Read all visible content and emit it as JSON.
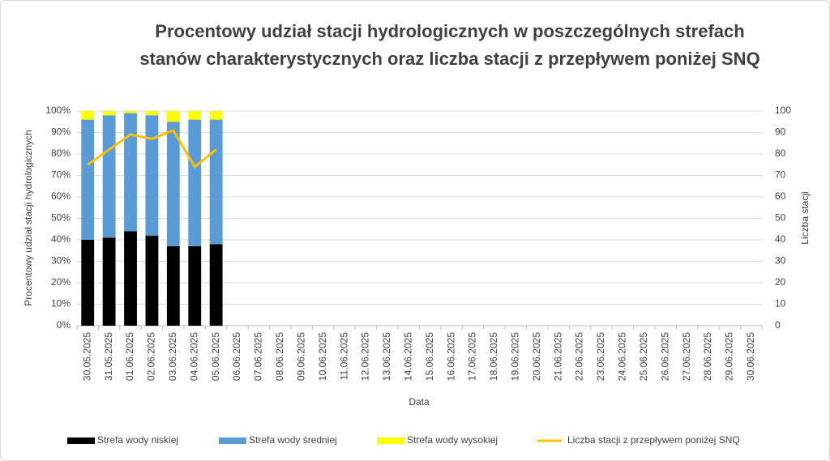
{
  "chart_data": {
    "type": "bar",
    "stacked": true,
    "title": "Procentowy udział stacji hydrologicznych w poszczególnych strefach stanów charakterystycznych oraz liczba stacji z przepływem poniżej SNQ",
    "xlabel": "Data",
    "ylabel": "Procentowy udział stacji hydrologicznych",
    "y2label": "Liczba stacji",
    "categories": [
      "30.05.2025",
      "31.05.2025",
      "01.06.2025",
      "02.06.2025",
      "03.06.2025",
      "04.06.2025",
      "05.06.2025",
      "06.06.2025",
      "07.06.2025",
      "08.06.2025",
      "09.06.2025",
      "10.06.2025",
      "11.06.2025",
      "12.06.2025",
      "13.06.2025",
      "14.06.2025",
      "15.06.2025",
      "16.06.2025",
      "17.06.2025",
      "18.06.2025",
      "19.06.2025",
      "20.06.2025",
      "21.06.2025",
      "22.06.2025",
      "23.06.2025",
      "24.06.2025",
      "25.06.2025",
      "26.06.2025",
      "27.06.2025",
      "28.06.2025",
      "29.06.2025",
      "30.06.2025"
    ],
    "series": [
      {
        "name": "Strefa wody niskiej",
        "color": "#000000",
        "values": [
          40,
          41,
          44,
          42,
          37,
          37,
          38,
          null,
          null,
          null,
          null,
          null,
          null,
          null,
          null,
          null,
          null,
          null,
          null,
          null,
          null,
          null,
          null,
          null,
          null,
          null,
          null,
          null,
          null,
          null,
          null,
          null
        ]
      },
      {
        "name": "Strefa wody średniej",
        "color": "#5b9bd5",
        "values": [
          56,
          57,
          55,
          56,
          58,
          59,
          58,
          null,
          null,
          null,
          null,
          null,
          null,
          null,
          null,
          null,
          null,
          null,
          null,
          null,
          null,
          null,
          null,
          null,
          null,
          null,
          null,
          null,
          null,
          null,
          null,
          null
        ]
      },
      {
        "name": "Strefa wody wysokiej",
        "color": "#ffff00",
        "values": [
          4,
          2,
          1,
          2,
          5,
          4,
          4,
          null,
          null,
          null,
          null,
          null,
          null,
          null,
          null,
          null,
          null,
          null,
          null,
          null,
          null,
          null,
          null,
          null,
          null,
          null,
          null,
          null,
          null,
          null,
          null,
          null
        ]
      },
      {
        "name": "Liczba stacji z przepływem poniżej SNQ",
        "color": "#ffc000",
        "type": "line",
        "axis": "y2",
        "values": [
          75,
          82,
          89,
          87,
          91,
          74,
          82,
          null,
          null,
          null,
          null,
          null,
          null,
          null,
          null,
          null,
          null,
          null,
          null,
          null,
          null,
          null,
          null,
          null,
          null,
          null,
          null,
          null,
          null,
          null,
          null,
          null
        ]
      }
    ],
    "ylim": [
      0,
      100
    ],
    "yticks": [
      {
        "value": 0,
        "label": "0%"
      },
      {
        "value": 10,
        "label": "10%"
      },
      {
        "value": 20,
        "label": "20%"
      },
      {
        "value": 30,
        "label": "30%"
      },
      {
        "value": 40,
        "label": "40%"
      },
      {
        "value": 50,
        "label": "50%"
      },
      {
        "value": 60,
        "label": "60%"
      },
      {
        "value": 70,
        "label": "70%"
      },
      {
        "value": 80,
        "label": "80%"
      },
      {
        "value": 90,
        "label": "90%"
      },
      {
        "value": 100,
        "label": "100%"
      }
    ],
    "y2lim": [
      0,
      100
    ],
    "y2ticks": [
      0,
      10,
      20,
      30,
      40,
      50,
      60,
      70,
      80,
      90,
      100
    ],
    "grid": true,
    "legend": "bottom"
  }
}
